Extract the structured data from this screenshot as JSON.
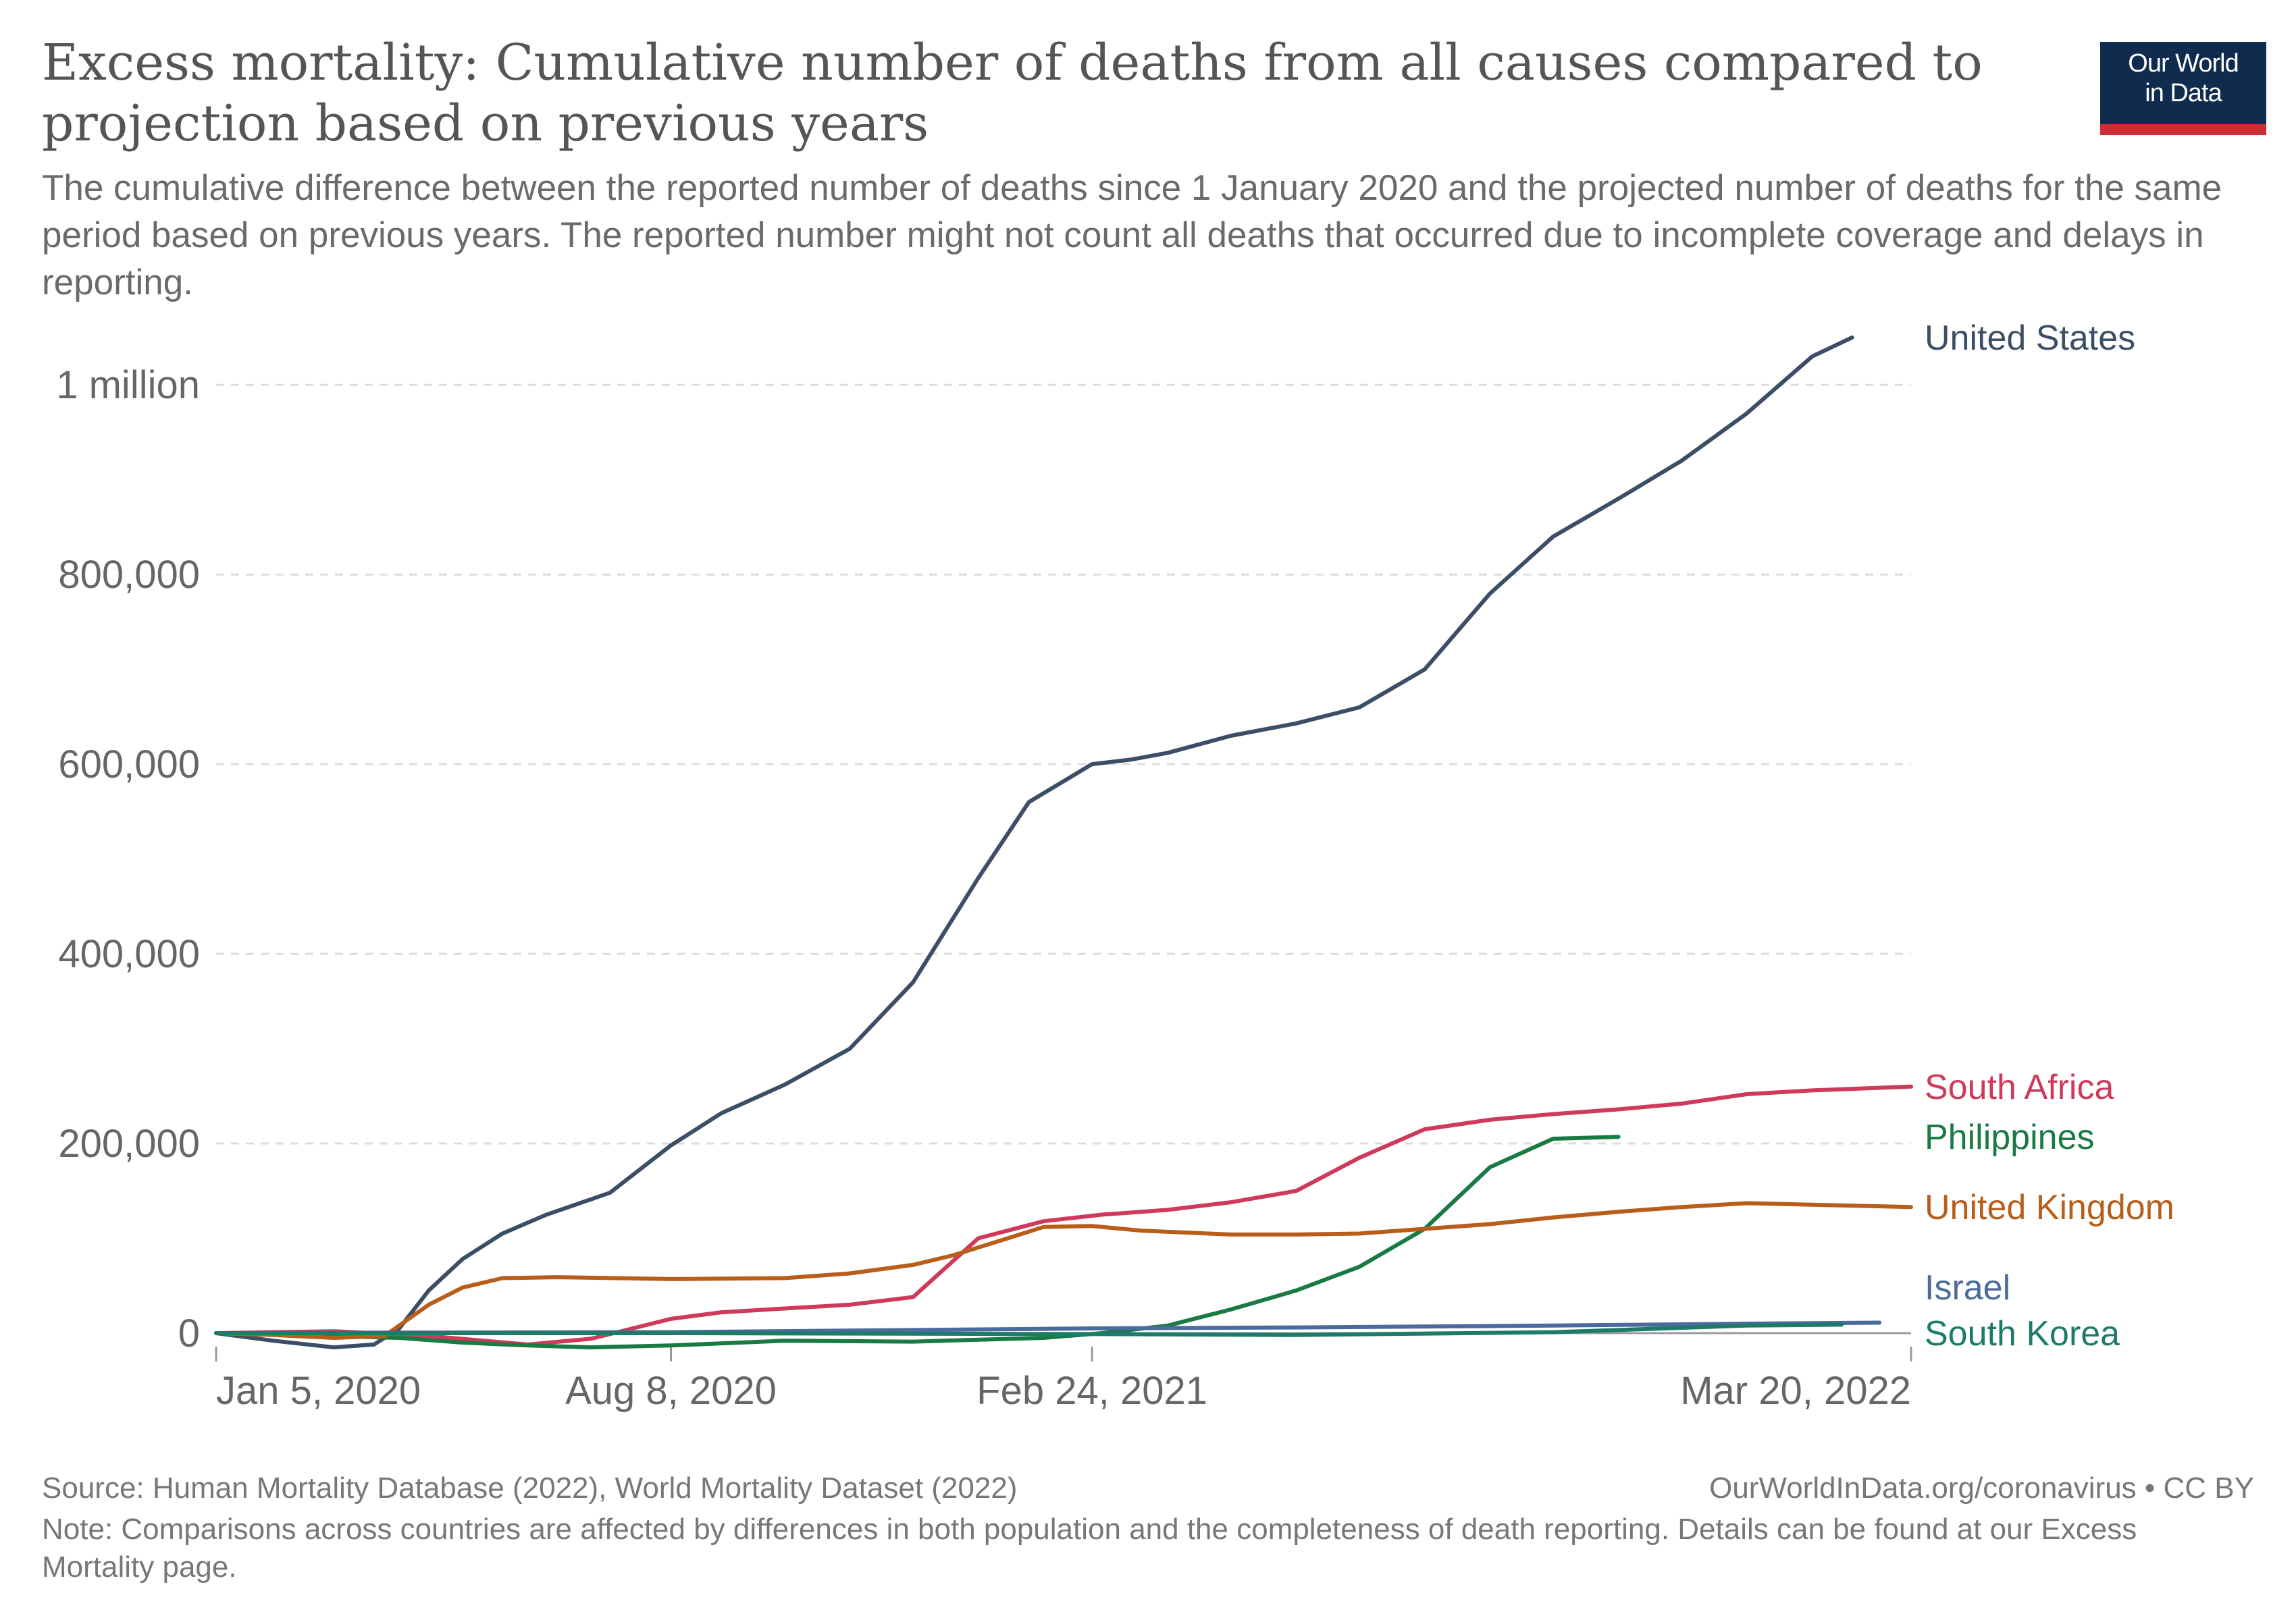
{
  "header": {
    "title": "Excess mortality: Cumulative number of deaths from all causes compared to projection based on previous years",
    "subtitle": "The cumulative difference between the reported number of deaths since 1 January 2020 and the projected number of deaths for the same period based on previous years. The reported number might not count all deaths that occurred due to incomplete coverage and delays in reporting.",
    "logo_line1": "Our World",
    "logo_line2": "in Data"
  },
  "footer": {
    "source": "Source: Human Mortality Database (2022), World Mortality Dataset (2022)",
    "credit": "OurWorldInData.org/coronavirus • CC BY",
    "note": "Note: Comparisons across countries are affected by differences in both population and the completeness of death reporting. Details can be found at our Excess Mortality page."
  },
  "colors": {
    "logo_bg": "#0f2b4d",
    "logo_accent": "#cc2e33",
    "grid": "#dddddd",
    "axis": "#999999"
  },
  "chart_data": {
    "type": "line",
    "x_type": "date",
    "xlim": [
      "2020-01-05",
      "2022-03-20"
    ],
    "ylim": [
      0,
      1050000
    ],
    "y_ticks": [
      {
        "value": 0,
        "label": "0"
      },
      {
        "value": 200000,
        "label": "200,000"
      },
      {
        "value": 400000,
        "label": "400,000"
      },
      {
        "value": 600000,
        "label": "600,000"
      },
      {
        "value": 800000,
        "label": "800,000"
      },
      {
        "value": 1000000,
        "label": "1 million"
      }
    ],
    "x_ticks": [
      {
        "value": "2020-01-05",
        "label": "Jan 5, 2020"
      },
      {
        "value": "2020-08-08",
        "label": "Aug 8, 2020"
      },
      {
        "value": "2021-02-24",
        "label": "Feb 24, 2021"
      },
      {
        "value": "2022-03-20",
        "label": "Mar 20, 2022"
      }
    ],
    "grid": "horizontal-dashed",
    "legend": "right, inline labels at line ends",
    "series": [
      {
        "name": "United States",
        "color": "#3c4e66",
        "points": [
          [
            "2020-01-05",
            0
          ],
          [
            "2020-02-01",
            -8000
          ],
          [
            "2020-03-01",
            -15000
          ],
          [
            "2020-03-20",
            -12000
          ],
          [
            "2020-04-01",
            5000
          ],
          [
            "2020-04-15",
            45000
          ],
          [
            "2020-05-01",
            78000
          ],
          [
            "2020-05-20",
            105000
          ],
          [
            "2020-06-10",
            125000
          ],
          [
            "2020-07-10",
            148000
          ],
          [
            "2020-08-08",
            198000
          ],
          [
            "2020-09-01",
            232000
          ],
          [
            "2020-10-01",
            262000
          ],
          [
            "2020-11-01",
            300000
          ],
          [
            "2020-12-01",
            370000
          ],
          [
            "2021-01-01",
            480000
          ],
          [
            "2021-01-25",
            560000
          ],
          [
            "2021-02-24",
            600000
          ],
          [
            "2021-03-15",
            605000
          ],
          [
            "2021-04-01",
            612000
          ],
          [
            "2021-05-01",
            630000
          ],
          [
            "2021-06-01",
            643000
          ],
          [
            "2021-07-01",
            660000
          ],
          [
            "2021-08-01",
            700000
          ],
          [
            "2021-09-01",
            780000
          ],
          [
            "2021-10-01",
            840000
          ],
          [
            "2021-11-01",
            880000
          ],
          [
            "2021-12-01",
            920000
          ],
          [
            "2022-01-01",
            970000
          ],
          [
            "2022-02-01",
            1030000
          ],
          [
            "2022-02-20",
            1050000
          ]
        ]
      },
      {
        "name": "South Africa",
        "color": "#cf3a5a",
        "points": [
          [
            "2020-01-05",
            0
          ],
          [
            "2020-03-01",
            2000
          ],
          [
            "2020-04-15",
            -3000
          ],
          [
            "2020-06-01",
            -12000
          ],
          [
            "2020-07-01",
            -6000
          ],
          [
            "2020-08-08",
            15000
          ],
          [
            "2020-09-01",
            22000
          ],
          [
            "2020-10-01",
            26000
          ],
          [
            "2020-11-01",
            30000
          ],
          [
            "2020-12-01",
            38000
          ],
          [
            "2021-01-01",
            100000
          ],
          [
            "2021-02-01",
            118000
          ],
          [
            "2021-03-01",
            125000
          ],
          [
            "2021-04-01",
            130000
          ],
          [
            "2021-05-01",
            138000
          ],
          [
            "2021-06-01",
            150000
          ],
          [
            "2021-07-01",
            185000
          ],
          [
            "2021-08-01",
            215000
          ],
          [
            "2021-09-01",
            225000
          ],
          [
            "2021-10-01",
            231000
          ],
          [
            "2021-11-01",
            236000
          ],
          [
            "2021-12-01",
            242000
          ],
          [
            "2022-01-01",
            252000
          ],
          [
            "2022-02-01",
            256000
          ],
          [
            "2022-03-20",
            260000
          ]
        ]
      },
      {
        "name": "Philippines",
        "color": "#1a7a43",
        "points": [
          [
            "2020-01-05",
            0
          ],
          [
            "2020-04-01",
            -5000
          ],
          [
            "2020-05-01",
            -10000
          ],
          [
            "2020-06-01",
            -13000
          ],
          [
            "2020-07-01",
            -15000
          ],
          [
            "2020-08-08",
            -13000
          ],
          [
            "2020-10-01",
            -8000
          ],
          [
            "2020-12-01",
            -9000
          ],
          [
            "2021-02-01",
            -5000
          ],
          [
            "2021-03-01",
            0
          ],
          [
            "2021-04-01",
            8000
          ],
          [
            "2021-05-01",
            25000
          ],
          [
            "2021-06-01",
            45000
          ],
          [
            "2021-07-01",
            70000
          ],
          [
            "2021-08-01",
            110000
          ],
          [
            "2021-09-01",
            175000
          ],
          [
            "2021-10-01",
            205000
          ],
          [
            "2021-11-01",
            207000
          ]
        ]
      },
      {
        "name": "United Kingdom",
        "color": "#b85e1a",
        "points": [
          [
            "2020-01-05",
            0
          ],
          [
            "2020-02-01",
            -2000
          ],
          [
            "2020-03-01",
            -5000
          ],
          [
            "2020-03-25",
            -3000
          ],
          [
            "2020-04-15",
            30000
          ],
          [
            "2020-05-01",
            48000
          ],
          [
            "2020-05-20",
            58000
          ],
          [
            "2020-06-15",
            59000
          ],
          [
            "2020-08-08",
            57000
          ],
          [
            "2020-10-01",
            58000
          ],
          [
            "2020-11-01",
            63000
          ],
          [
            "2020-12-01",
            72000
          ],
          [
            "2020-12-20",
            82000
          ],
          [
            "2021-01-15",
            100000
          ],
          [
            "2021-02-01",
            112000
          ],
          [
            "2021-02-24",
            113000
          ],
          [
            "2021-03-20",
            108000
          ],
          [
            "2021-05-01",
            104000
          ],
          [
            "2021-06-01",
            104000
          ],
          [
            "2021-07-01",
            105000
          ],
          [
            "2021-08-01",
            110000
          ],
          [
            "2021-09-01",
            115000
          ],
          [
            "2021-10-01",
            122000
          ],
          [
            "2021-11-01",
            128000
          ],
          [
            "2021-12-01",
            133000
          ],
          [
            "2022-01-01",
            137000
          ],
          [
            "2022-03-20",
            133000
          ]
        ]
      },
      {
        "name": "Israel",
        "color": "#4c6a9c",
        "points": [
          [
            "2020-01-05",
            0
          ],
          [
            "2020-04-01",
            500
          ],
          [
            "2020-08-08",
            1000
          ],
          [
            "2021-02-24",
            5000
          ],
          [
            "2021-06-01",
            6000
          ],
          [
            "2021-10-01",
            8000
          ],
          [
            "2022-01-01",
            10000
          ],
          [
            "2022-03-05",
            11000
          ]
        ]
      },
      {
        "name": "South Korea",
        "color": "#1e7b6a",
        "points": [
          [
            "2020-01-05",
            0
          ],
          [
            "2020-08-08",
            0
          ],
          [
            "2021-02-24",
            -1000
          ],
          [
            "2021-06-01",
            -2000
          ],
          [
            "2021-10-01",
            1000
          ],
          [
            "2022-01-01",
            8000
          ],
          [
            "2022-02-15",
            9000
          ]
        ]
      }
    ]
  }
}
